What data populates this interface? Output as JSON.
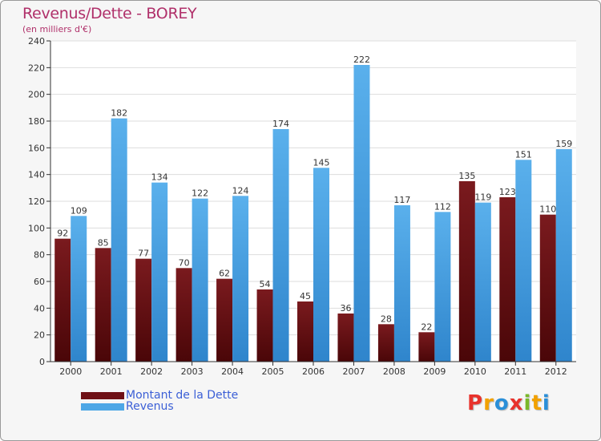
{
  "header": {
    "title": "Revenus/Dette - BOREY",
    "subtitle": "(en milliers d'€)"
  },
  "colors": {
    "debt": "#6e1015",
    "revenue": "#4ea7e6",
    "title": "#b0306a",
    "legend_text": "#3b5fd6"
  },
  "legend": {
    "debt_label": "Montant de la Dette",
    "revenue_label": "Revenus"
  },
  "logo": {
    "text": "Proxiti",
    "letters": [
      {
        "ch": "P",
        "color": "#e8322c"
      },
      {
        "ch": "r",
        "color": "#f2a100"
      },
      {
        "ch": "o",
        "color": "#2a8fd8"
      },
      {
        "ch": "x",
        "color": "#e8322c"
      },
      {
        "ch": "i",
        "color": "#7ab829"
      },
      {
        "ch": "t",
        "color": "#f2a100"
      },
      {
        "ch": "i",
        "color": "#2a8fd8"
      }
    ]
  },
  "chart_data": {
    "type": "bar",
    "title": "Revenus/Dette - BOREY",
    "ylabel": "(en milliers d'€)",
    "xlabel": "",
    "categories": [
      "2000",
      "2001",
      "2002",
      "2003",
      "2004",
      "2005",
      "2006",
      "2007",
      "2008",
      "2009",
      "2010",
      "2011",
      "2012"
    ],
    "series": [
      {
        "name": "Montant de la Dette",
        "values": [
          92,
          85,
          77,
          70,
          62,
          54,
          45,
          36,
          28,
          22,
          135,
          123,
          110
        ]
      },
      {
        "name": "Revenus",
        "values": [
          109,
          182,
          134,
          122,
          124,
          174,
          145,
          222,
          117,
          112,
          119,
          151,
          159
        ]
      }
    ],
    "ylim": [
      0,
      240
    ],
    "yticks": [
      0,
      20,
      40,
      60,
      80,
      100,
      120,
      140,
      160,
      180,
      200,
      220,
      240
    ],
    "grid": true,
    "legend_position": "bottom-left"
  }
}
